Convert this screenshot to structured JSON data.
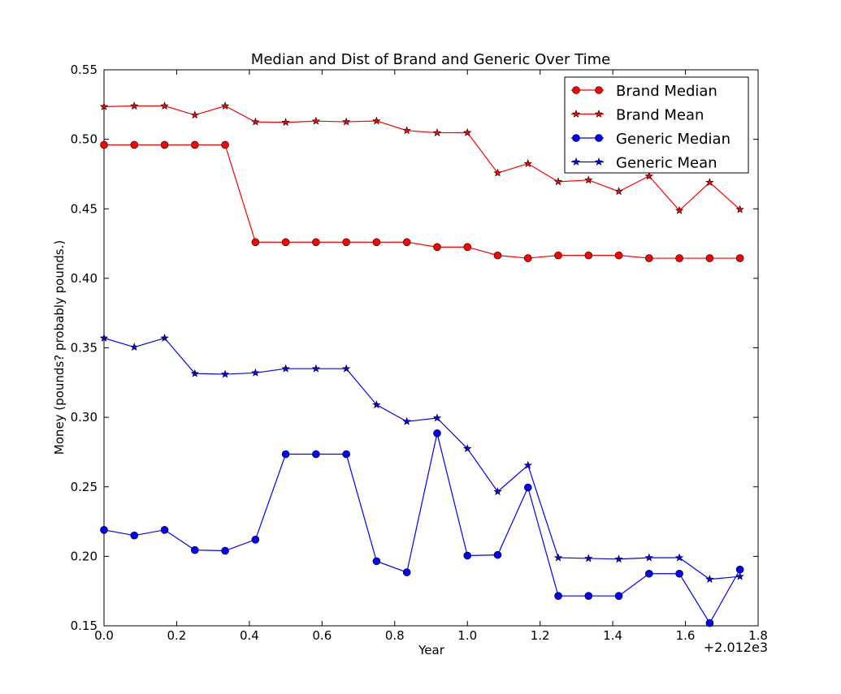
{
  "chart_data": {
    "type": "line",
    "title": "Median and Dist of Brand and Generic Over Time",
    "xlabel": "Year",
    "ylabel": "Money (pounds?  probably pounds.)",
    "x_offset_label": "+2.012e3",
    "xlim": [
      0.0,
      1.8
    ],
    "ylim": [
      0.15,
      0.55
    ],
    "xticks": [
      "0.0",
      "0.2",
      "0.4",
      "0.6",
      "0.8",
      "1.0",
      "1.2",
      "1.4",
      "1.6",
      "1.8"
    ],
    "yticks": [
      "0.15",
      "0.20",
      "0.25",
      "0.30",
      "0.35",
      "0.40",
      "0.45",
      "0.50",
      "0.55"
    ],
    "grid": false,
    "legend_position": "top-right",
    "x": [
      0.0,
      0.0833,
      0.1667,
      0.25,
      0.3333,
      0.4167,
      0.5,
      0.5833,
      0.6667,
      0.75,
      0.8333,
      0.9167,
      1.0,
      1.0833,
      1.1667,
      1.25,
      1.3333,
      1.4167,
      1.5,
      1.5833,
      1.6667,
      1.75
    ],
    "series": [
      {
        "name": "Brand Median",
        "color": "#ff0000",
        "marker": "circle",
        "values": [
          0.496,
          0.496,
          0.496,
          0.496,
          0.496,
          0.426,
          0.426,
          0.426,
          0.426,
          0.426,
          0.426,
          0.4225,
          0.4225,
          0.4165,
          0.4145,
          0.4165,
          0.4165,
          0.4165,
          0.4145,
          0.4145,
          0.4145,
          0.4145
        ]
      },
      {
        "name": "Brand Mean",
        "color": "#ff0000",
        "marker": "star",
        "values": [
          0.5235,
          0.524,
          0.524,
          0.5175,
          0.524,
          0.5125,
          0.5122,
          0.5131,
          0.5126,
          0.5132,
          0.5063,
          0.5047,
          0.5048,
          0.4758,
          0.4825,
          0.4695,
          0.4707,
          0.4625,
          0.4735,
          0.4488,
          0.469,
          0.4495
        ]
      },
      {
        "name": "Generic Median",
        "color": "#0000ff",
        "marker": "circle",
        "values": [
          0.219,
          0.215,
          0.219,
          0.2045,
          0.204,
          0.212,
          0.2735,
          0.2735,
          0.2735,
          0.1965,
          0.1885,
          0.2885,
          0.2005,
          0.201,
          0.2495,
          0.1715,
          0.1715,
          0.1715,
          0.1875,
          0.1875,
          0.152,
          0.1905
        ]
      },
      {
        "name": "Generic Mean",
        "color": "#0000ff",
        "marker": "star",
        "values": [
          0.357,
          0.3505,
          0.357,
          0.3315,
          0.331,
          0.332,
          0.335,
          0.335,
          0.335,
          0.309,
          0.297,
          0.2995,
          0.2775,
          0.2465,
          0.2655,
          0.199,
          0.1985,
          0.198,
          0.199,
          0.199,
          0.1835,
          0.1855
        ]
      }
    ]
  }
}
